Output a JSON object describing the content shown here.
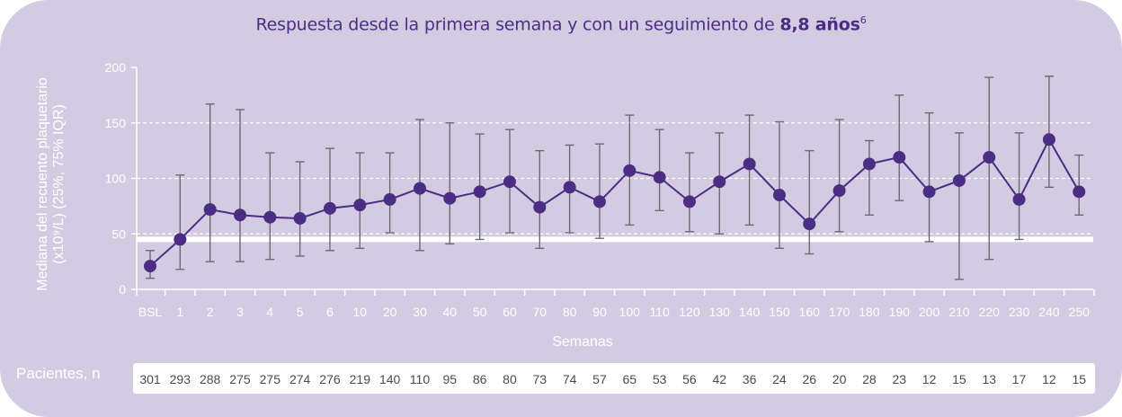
{
  "title": {
    "main": "Respuesta desde la primera semana y con un seguimiento de ",
    "bold": "8,8 años",
    "superscript": "6"
  },
  "patients_label": "Pacientes, n",
  "colors": {
    "background": "#d3cbe2",
    "series": "#4b2e83",
    "error_bars": "#6b6b73",
    "reference_line": "#ffffff",
    "title": "#4b2e83"
  },
  "chart_data": {
    "type": "line",
    "xlabel": "Semanas",
    "ylabel_lines": [
      "Mediana del recuento plaquetario",
      "(x10⁹/L) (25%, 75% IQR)"
    ],
    "ylim": [
      0,
      200
    ],
    "yticks": [
      0,
      50,
      100,
      150,
      200
    ],
    "gridlines_dashed": [
      50,
      100,
      150
    ],
    "reference_line_y": 45,
    "categories": [
      "BSL",
      "1",
      "2",
      "3",
      "4",
      "5",
      "6",
      "10",
      "20",
      "30",
      "40",
      "50",
      "60",
      "70",
      "80",
      "90",
      "100",
      "110",
      "120",
      "130",
      "140",
      "150",
      "160",
      "170",
      "180",
      "190",
      "200",
      "210",
      "220",
      "230",
      "240",
      "250"
    ],
    "series": [
      {
        "median": [
          21,
          45,
          72,
          67,
          65,
          64,
          73,
          76,
          81,
          91,
          82,
          88,
          97,
          74,
          92,
          79,
          107,
          101,
          79,
          97,
          113,
          85,
          59,
          89,
          113,
          119,
          88,
          98,
          119,
          81,
          135,
          88
        ],
        "q1": [
          10,
          18,
          25,
          25,
          27,
          30,
          35,
          37,
          51,
          35,
          41,
          45,
          51,
          37,
          51,
          46,
          58,
          71,
          52,
          50,
          58,
          37,
          32,
          52,
          67,
          80,
          43,
          9,
          27,
          45,
          92,
          67
        ],
        "q3": [
          35,
          103,
          167,
          162,
          123,
          115,
          127,
          123,
          123,
          153,
          150,
          140,
          144,
          125,
          130,
          131,
          157,
          144,
          123,
          141,
          157,
          151,
          125,
          153,
          134,
          175,
          159,
          141,
          191,
          141,
          192,
          121
        ]
      }
    ],
    "patients_n": [
      "301",
      "293",
      "288",
      "275",
      "275",
      "274",
      "276",
      "219",
      "140",
      "110",
      "95",
      "86",
      "80",
      "73",
      "74",
      "57",
      "65",
      "53",
      "56",
      "42",
      "36",
      "24",
      "26",
      "20",
      "28",
      "23",
      "12",
      "15",
      "13",
      "17",
      "12",
      "15"
    ]
  }
}
